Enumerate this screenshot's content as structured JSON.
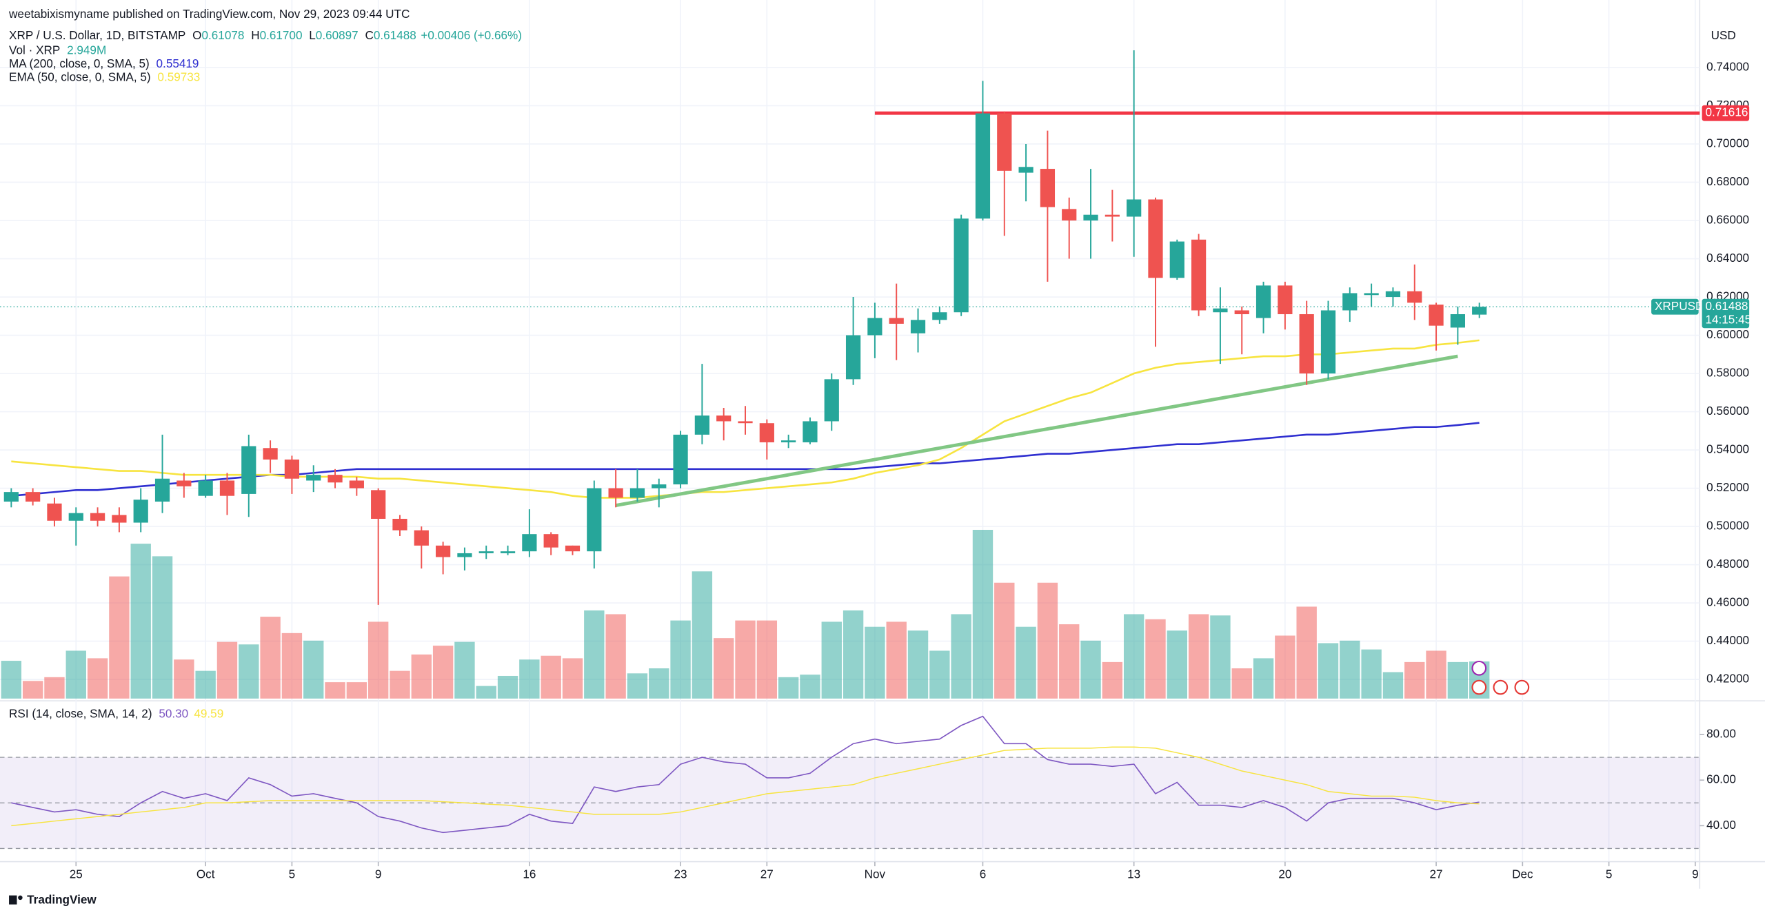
{
  "chart_data": {
    "type": "candlestick",
    "publisher": "weetabixismyname published on TradingView.com, Nov 29, 2023 09:44 UTC",
    "title": "XRP / U.S. Dollar, 1D, BITSTAMP",
    "ohlc_legend": [
      {
        "label": "O",
        "value": "0.61078"
      },
      {
        "label": "H",
        "value": "0.61700"
      },
      {
        "label": "L",
        "value": "0.60897"
      },
      {
        "label": "C",
        "value": "0.61488"
      }
    ],
    "change": "+0.00406 (+0.66%)",
    "currency": "USD",
    "symbol": "XRPUSD",
    "last_price_label": "0.61488",
    "countdown": "14:15:45",
    "up_color": "#26a69a",
    "down_color": "#ef5350",
    "categories": [
      "2023-09-22",
      "2023-09-23",
      "2023-09-24",
      "2023-09-25",
      "2023-09-26",
      "2023-09-27",
      "2023-09-28",
      "2023-09-29",
      "2023-09-30",
      "2023-10-01",
      "2023-10-02",
      "2023-10-03",
      "2023-10-04",
      "2023-10-05",
      "2023-10-06",
      "2023-10-07",
      "2023-10-08",
      "2023-10-09",
      "2023-10-10",
      "2023-10-11",
      "2023-10-12",
      "2023-10-13",
      "2023-10-14",
      "2023-10-15",
      "2023-10-16",
      "2023-10-17",
      "2023-10-18",
      "2023-10-19",
      "2023-10-20",
      "2023-10-21",
      "2023-10-22",
      "2023-10-23",
      "2023-10-24",
      "2023-10-25",
      "2023-10-26",
      "2023-10-27",
      "2023-10-28",
      "2023-10-29",
      "2023-10-30",
      "2023-10-31",
      "2023-11-01",
      "2023-11-02",
      "2023-11-03",
      "2023-11-04",
      "2023-11-05",
      "2023-11-06",
      "2023-11-07",
      "2023-11-08",
      "2023-11-09",
      "2023-11-10",
      "2023-11-11",
      "2023-11-12",
      "2023-11-13",
      "2023-11-14",
      "2023-11-15",
      "2023-11-16",
      "2023-11-17",
      "2023-11-18",
      "2023-11-19",
      "2023-11-20",
      "2023-11-21",
      "2023-11-22",
      "2023-11-23",
      "2023-11-24",
      "2023-11-25",
      "2023-11-26",
      "2023-11-27",
      "2023-11-28",
      "2023-11-29"
    ],
    "open": [
      0.513,
      0.518,
      0.512,
      0.503,
      0.507,
      0.506,
      0.502,
      0.513,
      0.524,
      0.516,
      0.524,
      0.517,
      0.541,
      0.535,
      0.524,
      0.527,
      0.524,
      0.519,
      0.504,
      0.498,
      0.49,
      0.484,
      0.486,
      0.486,
      0.487,
      0.496,
      0.49,
      0.487,
      0.52,
      0.515,
      0.52,
      0.522,
      0.548,
      0.558,
      0.555,
      0.554,
      0.544,
      0.544,
      0.555,
      0.577,
      0.6,
      0.609,
      0.601,
      0.608,
      0.612,
      0.661,
      0.716,
      0.685,
      0.687,
      0.666,
      0.66,
      0.663,
      0.662,
      0.671,
      0.63,
      0.65,
      0.612,
      0.613,
      0.609,
      0.626,
      0.611,
      0.58,
      0.613,
      0.621,
      0.62,
      0.623,
      0.616,
      0.604,
      0.61078
    ],
    "high": [
      0.52,
      0.52,
      0.515,
      0.51,
      0.51,
      0.51,
      0.52,
      0.548,
      0.528,
      0.527,
      0.528,
      0.548,
      0.545,
      0.537,
      0.532,
      0.53,
      0.526,
      0.52,
      0.506,
      0.5,
      0.492,
      0.489,
      0.49,
      0.49,
      0.509,
      0.497,
      0.49,
      0.524,
      0.53,
      0.53,
      0.525,
      0.55,
      0.585,
      0.562,
      0.563,
      0.556,
      0.548,
      0.557,
      0.58,
      0.62,
      0.617,
      0.627,
      0.614,
      0.615,
      0.663,
      0.733,
      0.717,
      0.7,
      0.707,
      0.672,
      0.687,
      0.676,
      0.749,
      0.672,
      0.65,
      0.653,
      0.625,
      0.615,
      0.628,
      0.628,
      0.618,
      0.618,
      0.625,
      0.627,
      0.625,
      0.637,
      0.617,
      0.615,
      0.617
    ],
    "low": [
      0.51,
      0.511,
      0.5,
      0.49,
      0.5,
      0.497,
      0.497,
      0.507,
      0.515,
      0.515,
      0.506,
      0.505,
      0.528,
      0.517,
      0.518,
      0.52,
      0.516,
      0.459,
      0.495,
      0.478,
      0.475,
      0.477,
      0.483,
      0.485,
      0.484,
      0.485,
      0.485,
      0.478,
      0.51,
      0.513,
      0.51,
      0.52,
      0.543,
      0.545,
      0.548,
      0.535,
      0.541,
      0.543,
      0.55,
      0.574,
      0.588,
      0.587,
      0.591,
      0.606,
      0.61,
      0.66,
      0.652,
      0.67,
      0.628,
      0.64,
      0.64,
      0.649,
      0.641,
      0.594,
      0.629,
      0.61,
      0.585,
      0.59,
      0.601,
      0.603,
      0.574,
      0.577,
      0.607,
      0.615,
      0.615,
      0.608,
      0.592,
      0.595,
      0.60897
    ],
    "close": [
      0.518,
      0.513,
      0.503,
      0.507,
      0.503,
      0.502,
      0.514,
      0.525,
      0.521,
      0.524,
      0.516,
      0.542,
      0.535,
      0.525,
      0.527,
      0.523,
      0.52,
      0.504,
      0.498,
      0.49,
      0.484,
      0.486,
      0.487,
      0.487,
      0.496,
      0.489,
      0.487,
      0.52,
      0.515,
      0.52,
      0.522,
      0.548,
      0.558,
      0.555,
      0.554,
      0.544,
      0.545,
      0.555,
      0.577,
      0.6,
      0.609,
      0.606,
      0.608,
      0.612,
      0.661,
      0.716,
      0.686,
      0.688,
      0.667,
      0.66,
      0.663,
      0.662,
      0.671,
      0.63,
      0.649,
      0.613,
      0.614,
      0.611,
      0.626,
      0.611,
      0.58,
      0.613,
      0.622,
      0.622,
      0.623,
      0.617,
      0.605,
      0.611,
      0.61488
    ],
    "ylim": [
      0.41,
      0.7753
    ],
    "yticks": [
      {
        "value": 0.42,
        "label": "0.42000"
      },
      {
        "value": 0.44,
        "label": "0.44000"
      },
      {
        "value": 0.46,
        "label": "0.46000"
      },
      {
        "value": 0.48,
        "label": "0.48000"
      },
      {
        "value": 0.5,
        "label": "0.50000"
      },
      {
        "value": 0.52,
        "label": "0.52000"
      },
      {
        "value": 0.54,
        "label": "0.54000"
      },
      {
        "value": 0.56,
        "label": "0.56000"
      },
      {
        "value": 0.58,
        "label": "0.58000"
      },
      {
        "value": 0.6,
        "label": "0.60000"
      },
      {
        "value": 0.62,
        "label": "0.62000"
      },
      {
        "value": 0.64,
        "label": "0.64000"
      },
      {
        "value": 0.66,
        "label": "0.66000"
      },
      {
        "value": 0.68,
        "label": "0.68000"
      },
      {
        "value": 0.7,
        "label": "0.70000"
      },
      {
        "value": 0.72,
        "label": "0.72000"
      },
      {
        "value": 0.74,
        "label": "0.74000"
      }
    ],
    "xticks": [
      {
        "value": "2023-09-25",
        "label": "25"
      },
      {
        "value": "2023-10-01",
        "label": "Oct"
      },
      {
        "value": "2023-10-05",
        "label": "5"
      },
      {
        "value": "2023-10-09",
        "label": "9"
      },
      {
        "value": "2023-10-16",
        "label": "16"
      },
      {
        "value": "2023-10-23",
        "label": "23"
      },
      {
        "value": "2023-10-27",
        "label": "27"
      },
      {
        "value": "2023-11-01",
        "label": "Nov"
      },
      {
        "value": "2023-11-06",
        "label": "6"
      },
      {
        "value": "2023-11-13",
        "label": "13"
      },
      {
        "value": "2023-11-20",
        "label": "20"
      },
      {
        "value": "2023-11-27",
        "label": "27"
      },
      {
        "value": "2023-12-01",
        "label": "Dec"
      },
      {
        "value": "2023-12-05",
        "label": "5"
      },
      {
        "value": "2023-12-09",
        "label": "9"
      }
    ],
    "volume": {
      "name": "Vol · XRP",
      "value_label": "2.949M",
      "values": [
        3.0,
        1.4,
        1.7,
        3.8,
        3.2,
        9.7,
        12.3,
        11.3,
        3.1,
        2.2,
        4.5,
        4.3,
        6.5,
        5.2,
        4.6,
        1.3,
        1.3,
        6.1,
        2.2,
        3.5,
        4.2,
        4.5,
        1.0,
        1.8,
        3.1,
        3.4,
        3.2,
        7.0,
        6.7,
        2.0,
        2.4,
        6.2,
        10.1,
        4.8,
        6.2,
        6.2,
        1.7,
        1.9,
        6.1,
        7.0,
        5.7,
        6.1,
        5.4,
        3.8,
        6.7,
        13.4,
        9.2,
        5.7,
        9.2,
        5.9,
        4.6,
        2.9,
        6.7,
        6.3,
        5.4,
        6.7,
        6.6,
        2.4,
        3.2,
        5.0,
        7.3,
        4.4,
        4.6,
        3.9,
        2.1,
        2.9,
        3.8,
        2.9,
        2.949
      ]
    },
    "series": [
      {
        "name": "MA (200, close, 0, SMA, 5)",
        "value_label": "0.55419",
        "color": "#2f2fd0",
        "values": [
          0.516,
          0.517,
          0.518,
          0.519,
          0.519,
          0.52,
          0.521,
          0.522,
          0.523,
          0.524,
          0.525,
          0.526,
          0.527,
          0.527,
          0.528,
          0.529,
          0.53,
          0.53,
          0.53,
          0.53,
          0.53,
          0.53,
          0.53,
          0.53,
          0.53,
          0.53,
          0.53,
          0.53,
          0.53,
          0.53,
          0.53,
          0.53,
          0.53,
          0.53,
          0.53,
          0.53,
          0.53,
          0.53,
          0.53,
          0.53,
          0.531,
          0.532,
          0.533,
          0.533,
          0.534,
          0.535,
          0.536,
          0.537,
          0.538,
          0.538,
          0.539,
          0.54,
          0.541,
          0.542,
          0.543,
          0.543,
          0.544,
          0.545,
          0.546,
          0.547,
          0.548,
          0.548,
          0.549,
          0.55,
          0.551,
          0.552,
          0.552,
          0.553,
          0.55419
        ]
      },
      {
        "name": "EMA (50, close, 0, SMA, 5)",
        "value_label": "0.59733",
        "color": "#f7e43f",
        "values": [
          0.534,
          0.533,
          0.532,
          0.531,
          0.53,
          0.529,
          0.529,
          0.528,
          0.527,
          0.527,
          0.527,
          0.527,
          0.527,
          0.526,
          0.526,
          0.526,
          0.526,
          0.525,
          0.525,
          0.524,
          0.523,
          0.522,
          0.521,
          0.52,
          0.519,
          0.518,
          0.516,
          0.515,
          0.515,
          0.515,
          0.516,
          0.517,
          0.518,
          0.518,
          0.519,
          0.52,
          0.521,
          0.522,
          0.523,
          0.525,
          0.528,
          0.53,
          0.532,
          0.535,
          0.541,
          0.548,
          0.555,
          0.559,
          0.563,
          0.567,
          0.57,
          0.575,
          0.58,
          0.583,
          0.585,
          0.586,
          0.587,
          0.588,
          0.589,
          0.589,
          0.59,
          0.59,
          0.591,
          0.592,
          0.593,
          0.593,
          0.595,
          0.596,
          0.59733
        ]
      }
    ],
    "resistance": {
      "value": 0.71616,
      "label": "0.71616",
      "start": "2023-11-01",
      "color": "#f23645"
    },
    "trendline": {
      "start_date": "2023-10-20",
      "start_value": 0.511,
      "end_date": "2023-11-28",
      "end_value": 0.589,
      "color": "#81c784"
    },
    "rsi": {
      "name": "RSI (14, close, SMA, 14, 2)",
      "ylim": [
        24.7,
        93.8
      ],
      "yticks": [
        {
          "value": 40,
          "label": "40.00"
        },
        {
          "value": 60,
          "label": "60.00"
        },
        {
          "value": 80,
          "label": "80.00"
        }
      ],
      "band": [
        30,
        70
      ],
      "midline": 50,
      "series": [
        {
          "value_label": "50.30",
          "color": "#7e57c2",
          "values": [
            50,
            48,
            46,
            47,
            45,
            44,
            50,
            55,
            52,
            54,
            51,
            61,
            58,
            53,
            54,
            52,
            50,
            44,
            42,
            39,
            37,
            38,
            39,
            40,
            45,
            42,
            41,
            57,
            55,
            57,
            58,
            67,
            70,
            68,
            67,
            61,
            61,
            63,
            70,
            76,
            78,
            76,
            77,
            78,
            84,
            88,
            76,
            76,
            69,
            67,
            67,
            66,
            67,
            54,
            59,
            49,
            49,
            48,
            51,
            48,
            42,
            50,
            52,
            52,
            52,
            50,
            47,
            49,
            50.3
          ]
        },
        {
          "value_label": "49.59",
          "color": "#f7e43f",
          "values": [
            40,
            41,
            42,
            43,
            44,
            45,
            46,
            47,
            48,
            50,
            50,
            50.5,
            51,
            51,
            51,
            51,
            51,
            51,
            51,
            51,
            50.5,
            50,
            49.5,
            49,
            48,
            47,
            46,
            45,
            45,
            45,
            45,
            46,
            48,
            50,
            52,
            54,
            55,
            56,
            57,
            58,
            61,
            63,
            65,
            67,
            69,
            71,
            73,
            73.5,
            74,
            74,
            74,
            74.5,
            74.5,
            74,
            72,
            70,
            67,
            64,
            62,
            60,
            58,
            55,
            54,
            53,
            53,
            52.5,
            51,
            50,
            49.59
          ]
        }
      ]
    },
    "brand": "TradingView"
  }
}
